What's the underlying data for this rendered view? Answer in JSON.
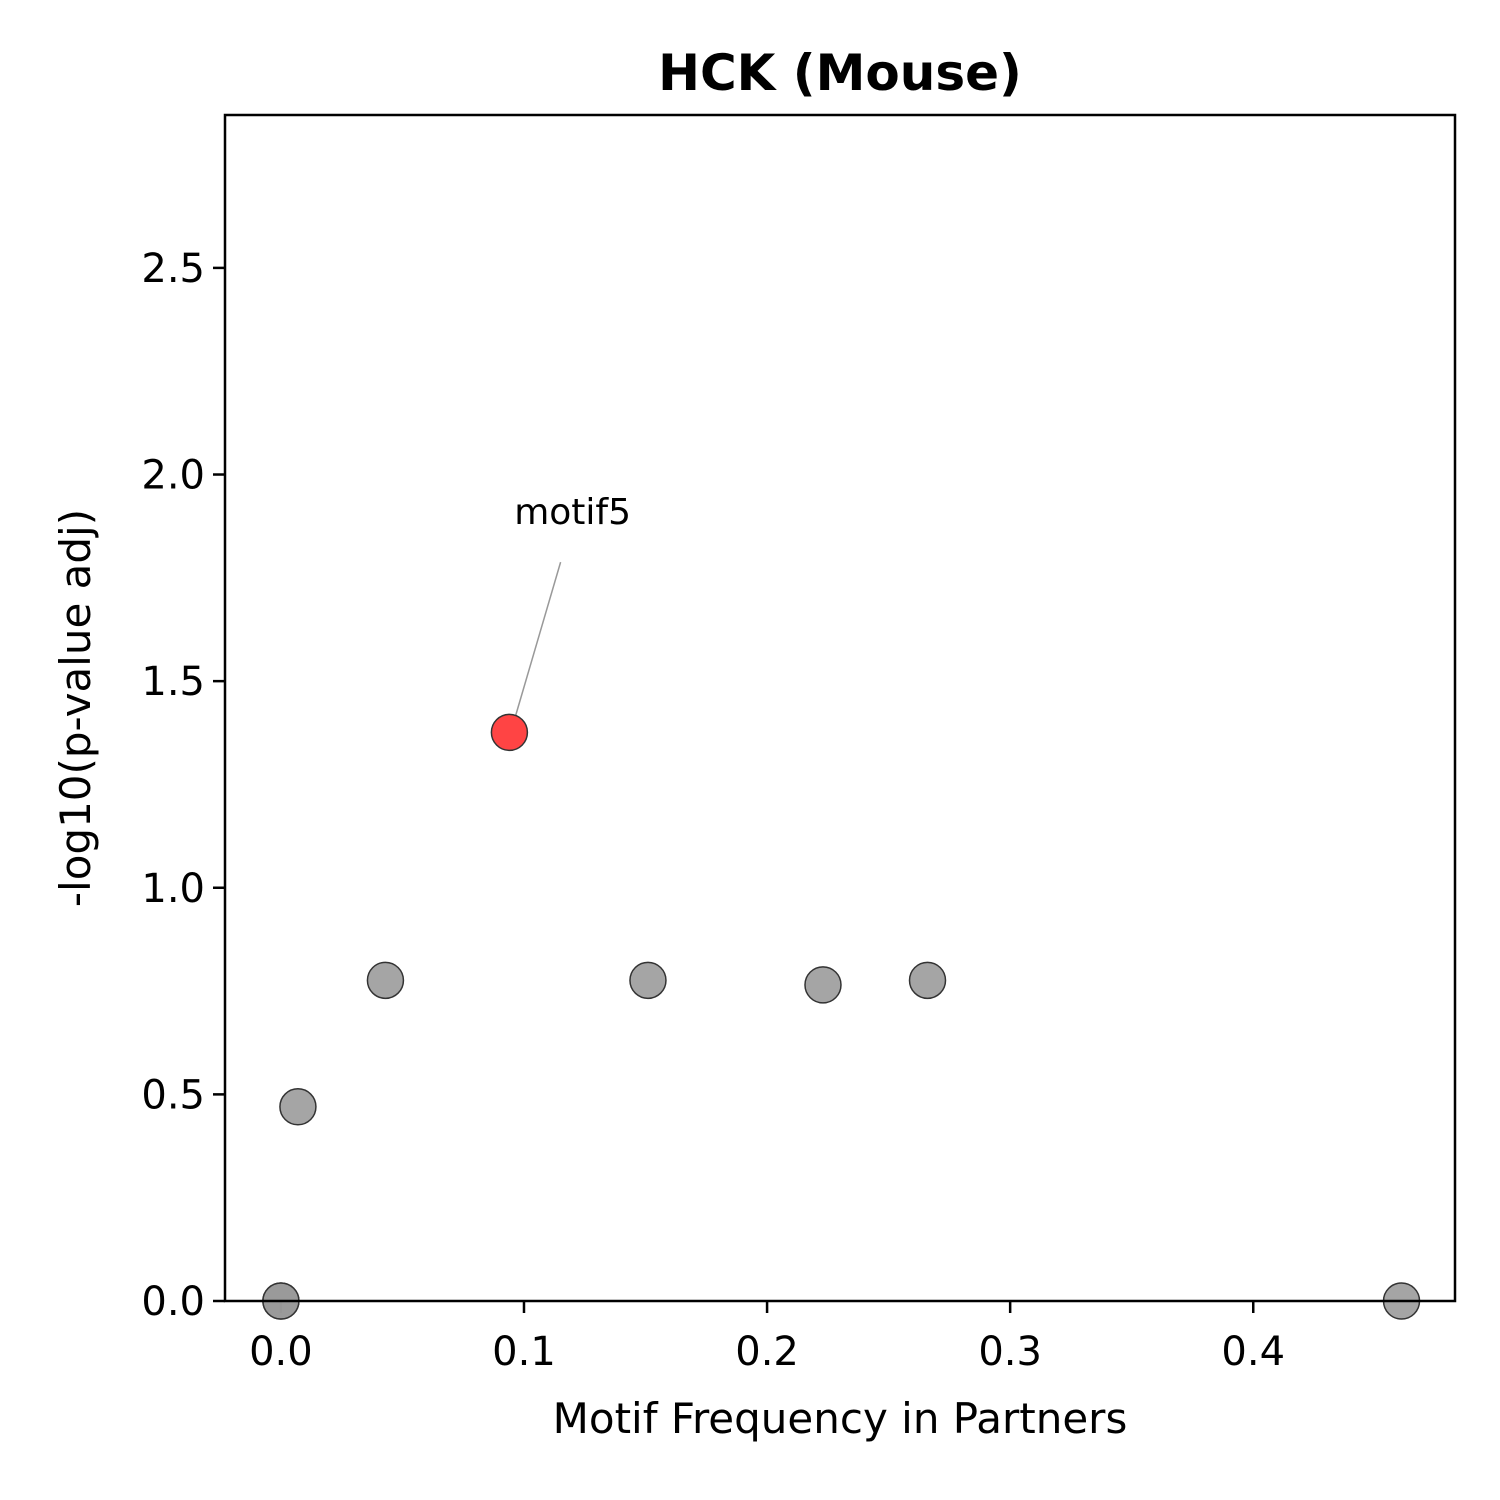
{
  "chart_data": {
    "type": "scatter",
    "title": "HCK (Mouse)",
    "xlabel": "Motif Frequency in Partners",
    "ylabel": "-log10(p-value adj)",
    "xlim": [
      -0.023,
      0.483
    ],
    "ylim": [
      0,
      2.87
    ],
    "xticks": [
      0.0,
      0.1,
      0.2,
      0.3,
      0.4
    ],
    "xtick_labels": [
      "0.0",
      "0.1",
      "0.2",
      "0.3",
      "0.4"
    ],
    "yticks": [
      0.0,
      0.5,
      1.0,
      1.5,
      2.0,
      2.5
    ],
    "ytick_labels": [
      "0.0",
      "0.5",
      "1.0",
      "1.5",
      "2.0",
      "2.5"
    ],
    "grid": false,
    "legend": "none",
    "colors": {
      "significant": "#ff4444",
      "not_significant": "#999999",
      "marker_edge": "#333333",
      "leader_line": "#999999"
    },
    "points": [
      {
        "x": 0.0,
        "y": 0.0,
        "significant": false
      },
      {
        "x": 0.0,
        "y": 0.0,
        "significant": false
      },
      {
        "x": 0.007,
        "y": 0.47,
        "significant": false
      },
      {
        "x": 0.043,
        "y": 0.776,
        "significant": false
      },
      {
        "x": 0.094,
        "y": 1.376,
        "significant": true,
        "label": "motif5"
      },
      {
        "x": 0.151,
        "y": 0.776,
        "significant": false
      },
      {
        "x": 0.223,
        "y": 0.765,
        "significant": false
      },
      {
        "x": 0.266,
        "y": 0.776,
        "significant": false
      },
      {
        "x": 0.461,
        "y": 0.0,
        "significant": false
      }
    ],
    "annotations": [
      {
        "text": "motif5",
        "point_index": 4,
        "text_x": 0.12,
        "text_y": 1.88
      }
    ]
  }
}
